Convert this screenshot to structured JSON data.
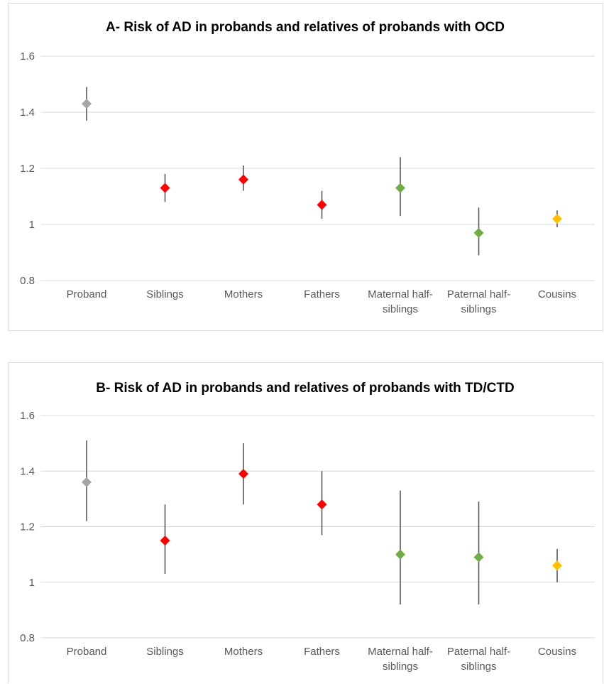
{
  "chart_data": [
    {
      "type": "scatter",
      "title": "A- Risk of AD in probands and relatives of probands with OCD",
      "xlabel": "",
      "ylabel": "",
      "ylim": [
        0.8,
        1.6
      ],
      "y_ticks": [
        "0.8",
        "1",
        "1.2",
        "1.4",
        "1.6"
      ],
      "categories": [
        [
          "Proband"
        ],
        [
          "Siblings"
        ],
        [
          "Mothers"
        ],
        [
          "Fathers"
        ],
        [
          "Maternal half-",
          "siblings"
        ],
        [
          "Paternal half-",
          "siblings"
        ],
        [
          "Cousins"
        ]
      ],
      "values": [
        1.43,
        1.13,
        1.16,
        1.07,
        1.13,
        0.97,
        1.02
      ],
      "ci_lower": [
        1.37,
        1.08,
        1.12,
        1.02,
        1.03,
        0.89,
        0.99
      ],
      "ci_upper": [
        1.49,
        1.18,
        1.21,
        1.12,
        1.24,
        1.06,
        1.05
      ],
      "colors": [
        "#a6a6a6",
        "#ff0000",
        "#ff0000",
        "#ff0000",
        "#70ad47",
        "#70ad47",
        "#ffc000"
      ],
      "grid": true,
      "legend": "none"
    },
    {
      "type": "scatter",
      "title": "B- Risk of AD in probands and relatives of probands with TD/CTD",
      "xlabel": "",
      "ylabel": "",
      "ylim": [
        0.8,
        1.6
      ],
      "y_ticks": [
        "0.8",
        "1",
        "1.2",
        "1.4",
        "1.6"
      ],
      "categories": [
        [
          "Proband"
        ],
        [
          "Siblings"
        ],
        [
          "Mothers"
        ],
        [
          "Fathers"
        ],
        [
          "Maternal half-",
          "siblings"
        ],
        [
          "Paternal half-",
          "siblings"
        ],
        [
          "Cousins"
        ]
      ],
      "values": [
        1.36,
        1.15,
        1.39,
        1.28,
        1.1,
        1.09,
        1.06
      ],
      "ci_lower": [
        1.22,
        1.03,
        1.28,
        1.17,
        0.92,
        0.92,
        1.0
      ],
      "ci_upper": [
        1.51,
        1.28,
        1.5,
        1.4,
        1.33,
        1.29,
        1.12
      ],
      "colors": [
        "#a6a6a6",
        "#ff0000",
        "#ff0000",
        "#ff0000",
        "#70ad47",
        "#70ad47",
        "#ffc000"
      ],
      "grid": true,
      "legend": "none"
    }
  ]
}
